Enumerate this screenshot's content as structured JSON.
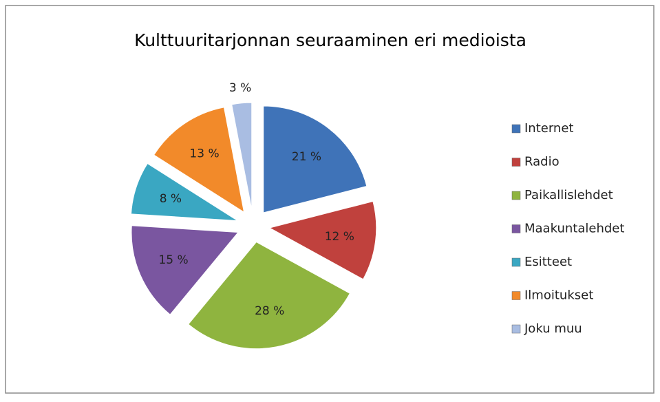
{
  "chart_data": {
    "type": "pie",
    "title": "Kulttuuritarjonnan seuraaminen eri medioista",
    "categories": [
      "Internet",
      "Radio",
      "Paikallislehdet",
      "Maakuntalehdet",
      "Esitteet",
      "Ilmoitukset",
      "Joku muu"
    ],
    "values": [
      21,
      12,
      28,
      15,
      8,
      13,
      3
    ],
    "value_labels": [
      "21 %",
      "12 %",
      "28 %",
      "15 %",
      "8 %",
      "13 %",
      "3 %"
    ],
    "colors": [
      "#3f73b8",
      "#c0413d",
      "#8fb43f",
      "#7a56a0",
      "#3aa7c2",
      "#f28a2a",
      "#a9bde2"
    ],
    "legend": "right"
  }
}
